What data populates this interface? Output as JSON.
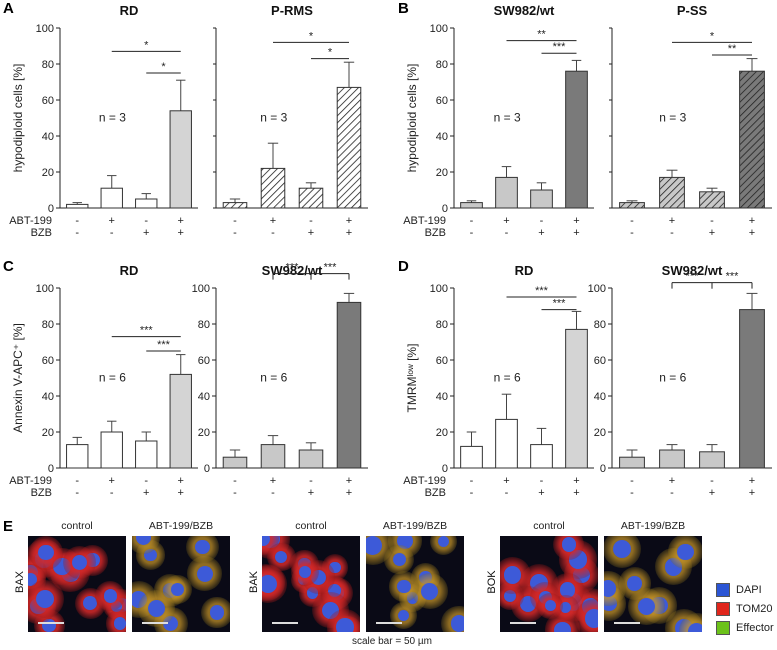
{
  "panels": [
    {
      "letter": "A"
    },
    {
      "letter": "B"
    },
    {
      "letter": "C"
    },
    {
      "letter": "D"
    },
    {
      "letter": "E"
    }
  ],
  "chart_data": [
    {
      "type": "bar",
      "panel": "A",
      "title": "RD",
      "ylabel": "hypodiploid cells [%]",
      "ylim": [
        0,
        100
      ],
      "yticks": [
        0,
        20,
        40,
        60,
        80,
        100
      ],
      "n_label": "n = 3",
      "categories": [
        "-/-",
        "+/-",
        "-/+",
        "+/+"
      ],
      "values": [
        2,
        11,
        5,
        54
      ],
      "errors": [
        1,
        7,
        3,
        17
      ],
      "fill": [
        "#ffffff",
        "#ffffff",
        "#ffffff",
        "#d4d4d4"
      ],
      "hatched": [
        false,
        false,
        false,
        false
      ],
      "significance": [
        {
          "from": 1,
          "to": 3,
          "label": "*",
          "y": 87
        },
        {
          "from": 2,
          "to": 3,
          "label": "*",
          "y": 75
        }
      ]
    },
    {
      "type": "bar",
      "panel": "A",
      "title": "P-RMS",
      "ylim": [
        0,
        100
      ],
      "n_label": "n = 3",
      "categories": [
        "-/-",
        "+/-",
        "-/+",
        "+/+"
      ],
      "values": [
        3,
        22,
        11,
        67
      ],
      "errors": [
        2,
        14,
        3,
        14
      ],
      "fill": [
        "#ffffff",
        "#ffffff",
        "#ffffff",
        "#ffffff"
      ],
      "hatched": [
        true,
        true,
        true,
        true
      ],
      "significance": [
        {
          "from": 1,
          "to": 3,
          "label": "*",
          "y": 92
        },
        {
          "from": 2,
          "to": 3,
          "label": "*",
          "y": 83
        }
      ]
    },
    {
      "type": "bar",
      "panel": "B",
      "title": "SW982/wt",
      "ylabel": "hypodiploid cells [%]",
      "ylim": [
        0,
        100
      ],
      "yticks": [
        0,
        20,
        40,
        60,
        80,
        100
      ],
      "n_label": "n = 3",
      "categories": [
        "-/-",
        "+/-",
        "-/+",
        "+/+"
      ],
      "values": [
        3,
        17,
        10,
        76
      ],
      "errors": [
        1,
        6,
        4,
        6
      ],
      "fill": [
        "#c8c8c8",
        "#c8c8c8",
        "#c8c8c8",
        "#7a7a7a"
      ],
      "hatched": [
        false,
        false,
        false,
        false
      ],
      "significance": [
        {
          "from": 1,
          "to": 3,
          "label": "**",
          "y": 93
        },
        {
          "from": 2,
          "to": 3,
          "label": "***",
          "y": 86
        }
      ]
    },
    {
      "type": "bar",
      "panel": "B",
      "title": "P-SS",
      "ylim": [
        0,
        100
      ],
      "n_label": "n = 3",
      "categories": [
        "-/-",
        "+/-",
        "-/+",
        "+/+"
      ],
      "values": [
        3,
        17,
        9,
        76
      ],
      "errors": [
        1,
        4,
        2,
        7
      ],
      "fill": [
        "#c8c8c8",
        "#c8c8c8",
        "#c8c8c8",
        "#7a7a7a"
      ],
      "hatched": [
        true,
        true,
        true,
        true
      ],
      "significance": [
        {
          "from": 1,
          "to": 3,
          "label": "*",
          "y": 92
        },
        {
          "from": 2,
          "to": 3,
          "label": "**",
          "y": 85
        }
      ]
    },
    {
      "type": "bar",
      "panel": "C",
      "title": "RD",
      "ylabel": "Annexin V-APC⁺ [%]",
      "ylim": [
        0,
        100
      ],
      "yticks": [
        0,
        20,
        40,
        60,
        80,
        100
      ],
      "n_label": "n = 6",
      "categories": [
        "-/-",
        "+/-",
        "-/+",
        "+/+"
      ],
      "values": [
        13,
        20,
        15,
        52
      ],
      "errors": [
        4,
        6,
        5,
        11
      ],
      "fill": [
        "#ffffff",
        "#ffffff",
        "#ffffff",
        "#d4d4d4"
      ],
      "hatched": [
        false,
        false,
        false,
        false
      ],
      "significance": [
        {
          "from": 1,
          "to": 3,
          "label": "***",
          "y": 73
        },
        {
          "from": 2,
          "to": 3,
          "label": "***",
          "y": 65
        }
      ]
    },
    {
      "type": "bar",
      "panel": "C",
      "title": "SW982/wt",
      "ylim": [
        0,
        100
      ],
      "yticks": [
        0,
        20,
        40,
        60,
        80,
        100
      ],
      "n_label": "n = 6",
      "categories": [
        "-/-",
        "+/-",
        "-/+",
        "+/+"
      ],
      "values": [
        6,
        13,
        10,
        92
      ],
      "errors": [
        4,
        5,
        4,
        5
      ],
      "fill": [
        "#c8c8c8",
        "#c8c8c8",
        "#c8c8c8",
        "#7a7a7a"
      ],
      "hatched": [
        false,
        false,
        false,
        false
      ],
      "significance": [
        {
          "from": 1,
          "to": 2,
          "label": "***",
          "y": 108
        },
        {
          "from": 2,
          "to": 3,
          "label": "***",
          "y": 108
        }
      ]
    },
    {
      "type": "bar",
      "panel": "D",
      "title": "RD",
      "ylabel": "TMRMˡᵒʷ [%]",
      "ylim": [
        0,
        100
      ],
      "yticks": [
        0,
        20,
        40,
        60,
        80,
        100
      ],
      "n_label": "n = 6",
      "categories": [
        "-/-",
        "+/-",
        "-/+",
        "+/+"
      ],
      "values": [
        12,
        27,
        13,
        77
      ],
      "errors": [
        8,
        14,
        9,
        10
      ],
      "fill": [
        "#ffffff",
        "#ffffff",
        "#ffffff",
        "#d4d4d4"
      ],
      "hatched": [
        false,
        false,
        false,
        false
      ],
      "significance": [
        {
          "from": 1,
          "to": 3,
          "label": "***",
          "y": 95
        },
        {
          "from": 2,
          "to": 3,
          "label": "***",
          "y": 88
        }
      ]
    },
    {
      "type": "bar",
      "panel": "D",
      "title": "SW982/wt",
      "ylim": [
        0,
        100
      ],
      "yticks": [
        0,
        20,
        40,
        60,
        80,
        100
      ],
      "n_label": "n = 6",
      "categories": [
        "-/-",
        "+/-",
        "-/+",
        "+/+"
      ],
      "values": [
        6,
        10,
        9,
        88
      ],
      "errors": [
        4,
        3,
        4,
        9
      ],
      "fill": [
        "#c8c8c8",
        "#c8c8c8",
        "#c8c8c8",
        "#7a7a7a"
      ],
      "hatched": [
        false,
        false,
        false,
        false
      ],
      "significance": [
        {
          "from": 1,
          "to": 2,
          "label": "***",
          "y": 103
        },
        {
          "from": 2,
          "to": 3,
          "label": "***",
          "y": 103
        }
      ]
    }
  ],
  "treatment_rows": [
    {
      "label": "ABT-199",
      "signs": [
        "-",
        "+",
        "-",
        "+"
      ]
    },
    {
      "label": "BZB",
      "signs": [
        "-",
        "-",
        "+",
        "+"
      ]
    }
  ],
  "micrographs": {
    "groups": [
      {
        "row_label": "BAX",
        "conditions": [
          "control",
          "ABT-199/BZB"
        ]
      },
      {
        "row_label": "BAK",
        "conditions": [
          "control",
          "ABT-199/BZB"
        ]
      },
      {
        "row_label": "BOK",
        "conditions": [
          "control",
          "ABT-199/BZB"
        ]
      }
    ],
    "scale_note": "scale bar = 50 µm",
    "legend": [
      {
        "label": "DAPI",
        "color": "#2b55d4"
      },
      {
        "label": "TOM20",
        "color": "#e0261c"
      },
      {
        "label": "Effector",
        "color": "#6cc21a"
      }
    ]
  }
}
